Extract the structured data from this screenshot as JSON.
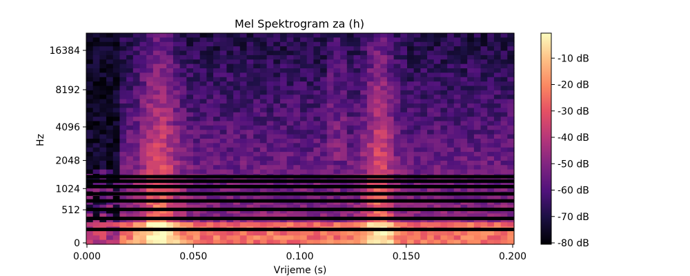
{
  "chart_data": {
    "type": "heatmap",
    "title": "Mel Spektrogram za (h)",
    "xlabel": "Vrijeme (s)",
    "ylabel": "Hz",
    "xlim": [
      0.0,
      0.2
    ],
    "x_ticks": [
      0.0,
      0.05,
      0.1,
      0.15,
      0.2
    ],
    "x_tick_labels": [
      "0.000",
      "0.050",
      "0.100",
      "0.150",
      "0.200"
    ],
    "y_scale": "mel",
    "y_ticks": [
      0,
      512,
      1024,
      2048,
      4096,
      8192,
      16384
    ],
    "y_tick_labels": [
      "0",
      "512",
      "1024",
      "2048",
      "4096",
      "8192",
      "16384"
    ],
    "colormap": "magma",
    "colorbar": {
      "ticks": [
        -10,
        -20,
        -30,
        -40,
        -50,
        -60,
        -70,
        -80
      ],
      "tick_labels": [
        "-10 dB",
        "-20 dB",
        "-30 dB",
        "-40 dB",
        "-50 dB",
        "-60 dB",
        "-70 dB",
        "-80 dB"
      ],
      "range": [
        -80,
        0
      ]
    },
    "events": [
      {
        "t_start": 0.016,
        "t_peak": 0.034,
        "level_db": -5
      },
      {
        "t_start": 0.122,
        "t_peak": 0.137,
        "level_db": -8
      }
    ],
    "silent_bands_hz": [
      1400,
      1250,
      1080,
      880,
      705,
      520,
      350,
      175
    ]
  }
}
